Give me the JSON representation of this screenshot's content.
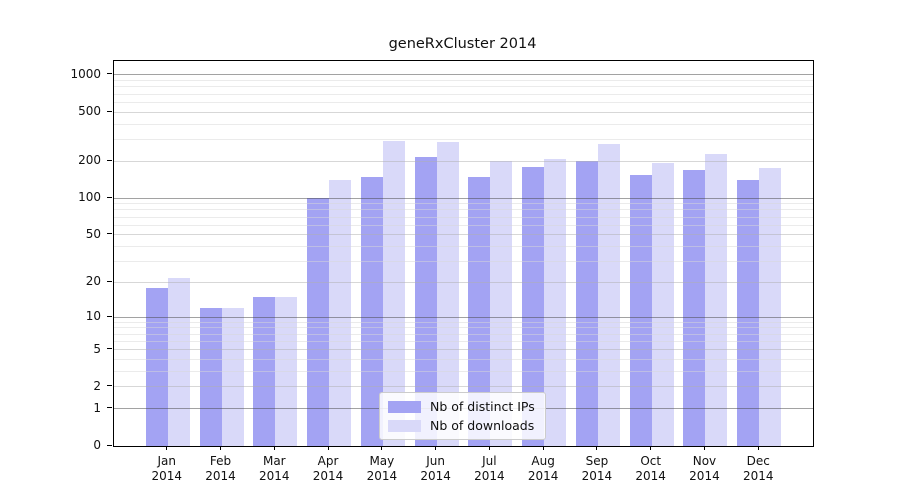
{
  "page": {
    "title": "geneRxCluster 2014"
  },
  "chart_data": {
    "type": "bar",
    "title": "geneRxCluster 2014",
    "categories": [
      "Jan",
      "Feb",
      "Mar",
      "Apr",
      "May",
      "Jun",
      "Jul",
      "Aug",
      "Sep",
      "Oct",
      "Nov",
      "Dec"
    ],
    "x_year_label": "2014",
    "series": [
      {
        "name": "Nb of distinct IPs",
        "color": "#a3a3f3",
        "values": [
          18,
          12,
          15,
          100,
          150,
          215,
          150,
          180,
          200,
          155,
          170,
          140
        ]
      },
      {
        "name": "Nb of downloads",
        "color": "#d9d9f9",
        "values": [
          22,
          12,
          15,
          140,
          290,
          285,
          200,
          210,
          275,
          195,
          230,
          175
        ]
      }
    ],
    "y_ticks": [
      0,
      1,
      2,
      5,
      10,
      20,
      50,
      100,
      200,
      500,
      1000
    ],
    "y_scale": "log10(1+x)",
    "ylim": [
      0,
      1300
    ],
    "grid": true,
    "legend_position": "bottom-center"
  }
}
